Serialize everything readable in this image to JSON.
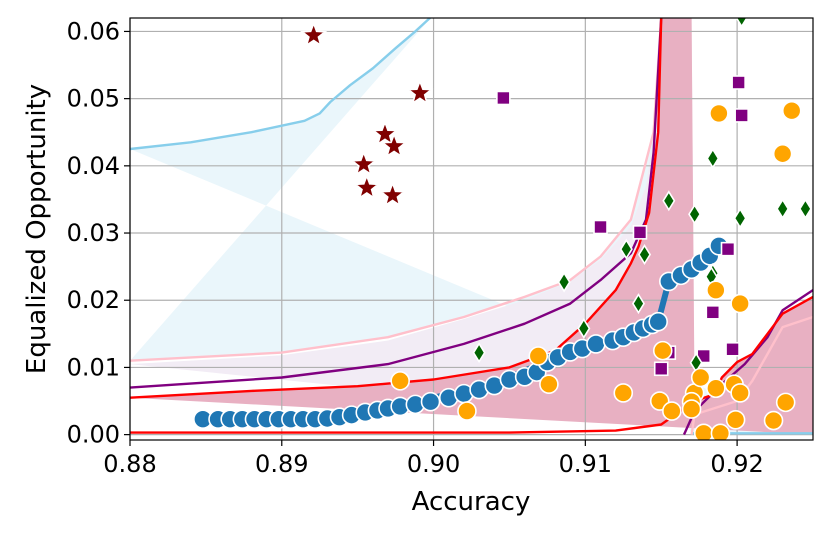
{
  "chart_data": {
    "type": "scatter",
    "xlabel": "Accuracy",
    "ylabel": "Equalized Opportunity",
    "xlim": [
      0.88,
      0.925
    ],
    "ylim": [
      -0.0008,
      0.062
    ],
    "xticks": [
      0.88,
      0.89,
      0.9,
      0.91,
      0.92
    ],
    "xtick_labels": [
      "0.88",
      "0.89",
      "0.90",
      "0.91",
      "0.92"
    ],
    "yticks": [
      0.0,
      0.01,
      0.02,
      0.03,
      0.04,
      0.05,
      0.06
    ],
    "ytick_labels": [
      "0.00",
      "0.01",
      "0.02",
      "0.03",
      "0.04",
      "0.05",
      "0.06"
    ],
    "grid": true,
    "colors": {
      "band_outer": "#eaf6fb",
      "band_mid": "#f2ecf5",
      "band_inner": "#e8b0c2",
      "curve_skyblue": "#87ceeb",
      "curve_pink": "#ffc0cb",
      "curve_purple": "#800080",
      "curve_red": "#ff0000",
      "frontier": "#1f77b4",
      "stars": "#800000",
      "squares": "#800080",
      "diamonds": "#006400",
      "circles": "#ffa500"
    },
    "bands": [
      {
        "color": "band_outer",
        "upper": [
          [
            0.88,
            0.0425
          ],
          [
            0.884,
            0.0435
          ],
          [
            0.888,
            0.045
          ],
          [
            0.8915,
            0.0467
          ],
          [
            0.8925,
            0.0478
          ],
          [
            0.8932,
            0.0495
          ],
          [
            0.8945,
            0.052
          ],
          [
            0.896,
            0.0545
          ],
          [
            0.8975,
            0.0575
          ],
          [
            0.8988,
            0.06
          ],
          [
            0.9,
            0.0625
          ]
        ],
        "lower": [
          [
            0.88,
            0.011
          ],
          [
            0.89,
            0.0122
          ],
          [
            0.897,
            0.0145
          ],
          [
            0.902,
            0.0175
          ],
          [
            0.906,
            0.0205
          ],
          [
            0.909,
            0.023
          ],
          [
            0.911,
            0.0265
          ],
          [
            0.913,
            0.032
          ],
          [
            0.9145,
            0.045
          ],
          [
            0.915,
            0.062
          ],
          [
            0.916,
            0.062
          ],
          [
            0.9165,
            0.0022
          ],
          [
            0.917,
            0.0002
          ],
          [
            0.925,
            0.0002
          ]
        ]
      },
      {
        "color": "band_mid",
        "upper": [
          [
            0.88,
            0.0105
          ],
          [
            0.89,
            0.0118
          ],
          [
            0.897,
            0.014
          ],
          [
            0.902,
            0.0172
          ],
          [
            0.906,
            0.02
          ],
          [
            0.909,
            0.0228
          ],
          [
            0.911,
            0.026
          ],
          [
            0.913,
            0.031
          ],
          [
            0.914,
            0.037
          ],
          [
            0.9145,
            0.045
          ],
          [
            0.915,
            0.062
          ]
        ],
        "lower": [
          [
            0.915,
            0.062
          ],
          [
            0.917,
            0.062
          ],
          [
            0.9172,
            0.003
          ],
          [
            0.92,
            0.005
          ],
          [
            0.921,
            0.008
          ],
          [
            0.922,
            0.012
          ],
          [
            0.923,
            0.016
          ],
          [
            0.925,
            0.0175
          ],
          [
            0.925,
            0.0
          ]
        ]
      },
      {
        "color": "band_inner",
        "upper": [
          [
            0.88,
            0.0055
          ],
          [
            0.888,
            0.0065
          ],
          [
            0.895,
            0.0072
          ],
          [
            0.9,
            0.0082
          ],
          [
            0.905,
            0.01
          ],
          [
            0.908,
            0.0125
          ],
          [
            0.91,
            0.0165
          ],
          [
            0.912,
            0.0215
          ],
          [
            0.913,
            0.0255
          ],
          [
            0.9135,
            0.028
          ],
          [
            0.9142,
            0.033
          ],
          [
            0.9148,
            0.045
          ],
          [
            0.915,
            0.062
          ]
        ],
        "lower": [
          [
            0.915,
            0.062
          ],
          [
            0.917,
            0.062
          ],
          [
            0.9172,
            0.005
          ],
          [
            0.9185,
            0.006
          ],
          [
            0.919,
            0.0085
          ],
          [
            0.92,
            0.0108
          ],
          [
            0.921,
            0.012
          ],
          [
            0.922,
            0.015
          ],
          [
            0.923,
            0.018
          ],
          [
            0.925,
            0.0205
          ],
          [
            0.925,
            0.0
          ]
        ]
      }
    ],
    "curves": [
      {
        "color": "curve_skyblue",
        "points": [
          [
            0.88,
            0.0425
          ],
          [
            0.884,
            0.0435
          ],
          [
            0.888,
            0.045
          ],
          [
            0.8915,
            0.0467
          ],
          [
            0.8925,
            0.0478
          ],
          [
            0.8932,
            0.0495
          ],
          [
            0.8945,
            0.052
          ],
          [
            0.896,
            0.0545
          ],
          [
            0.8975,
            0.0575
          ],
          [
            0.8988,
            0.06
          ],
          [
            0.9,
            0.0625
          ]
        ]
      },
      {
        "color": "curve_skyblue",
        "points": [
          [
            0.917,
            0.0002
          ],
          [
            0.925,
            0.0002
          ]
        ]
      },
      {
        "color": "curve_pink",
        "points": [
          [
            0.88,
            0.011
          ],
          [
            0.89,
            0.0122
          ],
          [
            0.897,
            0.0145
          ],
          [
            0.902,
            0.0175
          ],
          [
            0.906,
            0.0205
          ],
          [
            0.909,
            0.023
          ],
          [
            0.911,
            0.0265
          ],
          [
            0.913,
            0.032
          ],
          [
            0.9145,
            0.045
          ],
          [
            0.915,
            0.062
          ]
        ]
      },
      {
        "color": "curve_pink",
        "points": [
          [
            0.917,
            0.0
          ],
          [
            0.9172,
            0.003
          ],
          [
            0.92,
            0.005
          ],
          [
            0.921,
            0.008
          ],
          [
            0.922,
            0.012
          ],
          [
            0.923,
            0.016
          ],
          [
            0.925,
            0.0175
          ]
        ]
      },
      {
        "color": "curve_purple",
        "points": [
          [
            0.88,
            0.007
          ],
          [
            0.89,
            0.0085
          ],
          [
            0.897,
            0.0105
          ],
          [
            0.902,
            0.0135
          ],
          [
            0.906,
            0.0165
          ],
          [
            0.909,
            0.0195
          ],
          [
            0.911,
            0.023
          ],
          [
            0.913,
            0.027
          ],
          [
            0.914,
            0.032
          ],
          [
            0.9145,
            0.042
          ],
          [
            0.915,
            0.062
          ]
        ]
      },
      {
        "color": "curve_purple",
        "points": [
          [
            0.9165,
            0.0
          ],
          [
            0.9172,
            0.0035
          ],
          [
            0.919,
            0.0075
          ],
          [
            0.9205,
            0.0105
          ],
          [
            0.922,
            0.0145
          ],
          [
            0.923,
            0.0185
          ],
          [
            0.925,
            0.0215
          ]
        ]
      },
      {
        "color": "curve_red",
        "points": [
          [
            0.88,
            0.0055
          ],
          [
            0.888,
            0.0065
          ],
          [
            0.895,
            0.0072
          ],
          [
            0.9,
            0.0082
          ],
          [
            0.905,
            0.01
          ],
          [
            0.908,
            0.0125
          ],
          [
            0.91,
            0.0165
          ],
          [
            0.912,
            0.0215
          ],
          [
            0.913,
            0.0255
          ],
          [
            0.9135,
            0.028
          ],
          [
            0.9142,
            0.033
          ],
          [
            0.9148,
            0.045
          ],
          [
            0.915,
            0.062
          ]
        ]
      },
      {
        "color": "curve_red",
        "points": [
          [
            0.88,
            0.0003
          ],
          [
            0.905,
            0.0003
          ],
          [
            0.912,
            0.0006
          ],
          [
            0.915,
            0.0015
          ],
          [
            0.9172,
            0.005
          ],
          [
            0.9185,
            0.006
          ],
          [
            0.919,
            0.0085
          ],
          [
            0.92,
            0.0108
          ],
          [
            0.921,
            0.012
          ],
          [
            0.922,
            0.015
          ],
          [
            0.923,
            0.018
          ],
          [
            0.925,
            0.0205
          ]
        ]
      }
    ],
    "frontier_line": [
      [
        0.8848,
        0.0023
      ],
      [
        0.8895,
        0.0023
      ],
      [
        0.893,
        0.0025
      ],
      [
        0.896,
        0.0035
      ],
      [
        0.899,
        0.005
      ],
      [
        0.902,
        0.0065
      ],
      [
        0.905,
        0.0085
      ],
      [
        0.9075,
        0.011
      ],
      [
        0.9095,
        0.0128
      ],
      [
        0.911,
        0.0138
      ],
      [
        0.9135,
        0.0158
      ],
      [
        0.9148,
        0.0168
      ],
      [
        0.9155,
        0.0228
      ],
      [
        0.917,
        0.0245
      ],
      [
        0.9188,
        0.0282
      ]
    ],
    "series": [
      {
        "marker": "circle",
        "color": "frontier",
        "edge": "#ffffff",
        "size": 9,
        "points": [
          [
            0.8848,
            0.0023
          ],
          [
            0.8858,
            0.0023
          ],
          [
            0.8866,
            0.0023
          ],
          [
            0.8874,
            0.0023
          ],
          [
            0.8882,
            0.0023
          ],
          [
            0.889,
            0.0023
          ],
          [
            0.8898,
            0.0023
          ],
          [
            0.8906,
            0.0023
          ],
          [
            0.8914,
            0.0023
          ],
          [
            0.8922,
            0.0023
          ],
          [
            0.893,
            0.0024
          ],
          [
            0.8938,
            0.0026
          ],
          [
            0.8946,
            0.0029
          ],
          [
            0.8955,
            0.0033
          ],
          [
            0.8963,
            0.0036
          ],
          [
            0.897,
            0.0039
          ],
          [
            0.8978,
            0.0042
          ],
          [
            0.8988,
            0.0045
          ],
          [
            0.8998,
            0.0049
          ],
          [
            0.901,
            0.0055
          ],
          [
            0.902,
            0.0061
          ],
          [
            0.903,
            0.0067
          ],
          [
            0.904,
            0.0073
          ],
          [
            0.905,
            0.0082
          ],
          [
            0.906,
            0.0086
          ],
          [
            0.9068,
            0.0093
          ],
          [
            0.9075,
            0.0108
          ],
          [
            0.9082,
            0.0115
          ],
          [
            0.909,
            0.0123
          ],
          [
            0.9098,
            0.0128
          ],
          [
            0.9107,
            0.0135
          ],
          [
            0.9118,
            0.014
          ],
          [
            0.9125,
            0.0145
          ],
          [
            0.9132,
            0.0152
          ],
          [
            0.9138,
            0.0158
          ],
          [
            0.9144,
            0.0164
          ],
          [
            0.9148,
            0.0168
          ],
          [
            0.9155,
            0.0228
          ],
          [
            0.9163,
            0.0237
          ],
          [
            0.917,
            0.0246
          ],
          [
            0.9176,
            0.0256
          ],
          [
            0.9182,
            0.0266
          ],
          [
            0.9188,
            0.0281
          ]
        ]
      },
      {
        "marker": "star",
        "color": "stars",
        "edge": "#ffffff",
        "size": 10,
        "points": [
          [
            0.8921,
            0.0594
          ],
          [
            0.8991,
            0.0508
          ],
          [
            0.8968,
            0.0447
          ],
          [
            0.8974,
            0.0429
          ],
          [
            0.8954,
            0.0402
          ],
          [
            0.8956,
            0.0367
          ],
          [
            0.8973,
            0.0356
          ]
        ]
      },
      {
        "marker": "square",
        "color": "squares",
        "edge": "#ffffff",
        "size": 6.5,
        "points": [
          [
            0.9046,
            0.0501
          ],
          [
            0.9201,
            0.0524
          ],
          [
            0.9203,
            0.0475
          ],
          [
            0.911,
            0.0309
          ],
          [
            0.9136,
            0.0301
          ],
          [
            0.9194,
            0.0276
          ],
          [
            0.915,
            0.0098
          ],
          [
            0.9155,
            0.0122
          ],
          [
            0.9184,
            0.0182
          ],
          [
            0.9178,
            0.0117
          ],
          [
            0.9197,
            0.0127
          ]
        ]
      },
      {
        "marker": "diamond",
        "color": "diamonds",
        "edge": "#ffffff",
        "size": 9,
        "points": [
          [
            0.9203,
            0.0621
          ],
          [
            0.9184,
            0.0411
          ],
          [
            0.9155,
            0.0348
          ],
          [
            0.9172,
            0.0328
          ],
          [
            0.9202,
            0.0322
          ],
          [
            0.923,
            0.0336
          ],
          [
            0.9245,
            0.0336
          ],
          [
            0.9127,
            0.0276
          ],
          [
            0.9139,
            0.0268
          ],
          [
            0.9184,
            0.024
          ],
          [
            0.9086,
            0.0227
          ],
          [
            0.9135,
            0.0195
          ],
          [
            0.9099,
            0.0158
          ],
          [
            0.9173,
            0.0107
          ],
          [
            0.903,
            0.0122
          ],
          [
            0.9183,
            0.0235
          ]
        ]
      },
      {
        "marker": "circle",
        "color": "circles",
        "edge": "#ffffff",
        "size": 9,
        "points": [
          [
            0.8978,
            0.008
          ],
          [
            0.9022,
            0.0035
          ],
          [
            0.9069,
            0.0117
          ],
          [
            0.9076,
            0.0075
          ],
          [
            0.9188,
            0.0478
          ],
          [
            0.9236,
            0.0482
          ],
          [
            0.923,
            0.0418
          ],
          [
            0.9151,
            0.0125
          ],
          [
            0.9125,
            0.0062
          ],
          [
            0.9149,
            0.005
          ],
          [
            0.9157,
            0.0035
          ],
          [
            0.9172,
            0.0062
          ],
          [
            0.917,
            0.0049
          ],
          [
            0.917,
            0.0038
          ],
          [
            0.9176,
            0.0085
          ],
          [
            0.9178,
            0.0002
          ],
          [
            0.9186,
            0.0069
          ],
          [
            0.9189,
            0.0002
          ],
          [
            0.9198,
            0.0075
          ],
          [
            0.9199,
            0.0022
          ],
          [
            0.9202,
            0.0195
          ],
          [
            0.9202,
            0.0062
          ],
          [
            0.9186,
            0.0215
          ],
          [
            0.9224,
            0.0021
          ],
          [
            0.9232,
            0.0048
          ]
        ]
      }
    ]
  }
}
